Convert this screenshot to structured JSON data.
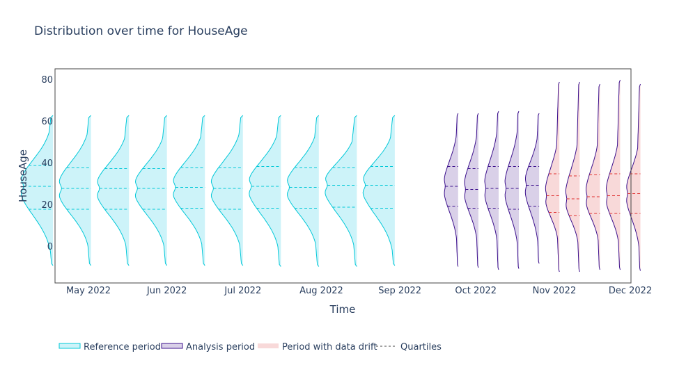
{
  "chart_data": {
    "type": "violin",
    "title": "Distribution over time for HouseAge",
    "xlabel": "Time",
    "ylabel": "HouseAge",
    "ylim": [
      -18,
      85
    ],
    "yticks": [
      0,
      20,
      40,
      60,
      80
    ],
    "xticks": [
      "May 2022",
      "Jun 2022",
      "Jul 2022",
      "Aug 2022",
      "Sep 2022",
      "Oct 2022",
      "Nov 2022",
      "Dec 2022"
    ],
    "grid": false,
    "legend_position": "bottom-left",
    "legend": [
      {
        "label": "Reference period",
        "kind": "reference"
      },
      {
        "label": "Analysis period",
        "kind": "analysis"
      },
      {
        "label": "Period with data drift",
        "kind": "drift"
      },
      {
        "label": "Quartiles",
        "kind": "quartile"
      }
    ],
    "colors": {
      "reference_line": "#00c8d8",
      "reference_fill": "#cdf3f9",
      "analysis_line": "#3b0f8c",
      "analysis_fill": "#d9d0e8",
      "drift_fill": "#f8d9d9",
      "drift_quartile": "#e03030",
      "axis": "#444444"
    },
    "violins": [
      {
        "date": "2022-04-17",
        "period": "reference",
        "drift": false,
        "min": -9,
        "max": 63,
        "q1": 18,
        "median": 29,
        "q3": 39
      },
      {
        "date": "2022-05-02",
        "period": "reference",
        "drift": false,
        "min": -9,
        "max": 63,
        "q1": 18,
        "median": 28,
        "q3": 38
      },
      {
        "date": "2022-05-17",
        "period": "reference",
        "drift": false,
        "min": -9,
        "max": 63,
        "q1": 18,
        "median": 28,
        "q3": 37.5
      },
      {
        "date": "2022-06-01",
        "period": "reference",
        "drift": false,
        "min": -9,
        "max": 63,
        "q1": 18,
        "median": 28,
        "q3": 37.5
      },
      {
        "date": "2022-06-16",
        "period": "reference",
        "drift": false,
        "min": -9,
        "max": 63,
        "q1": 18.5,
        "median": 28.5,
        "q3": 38
      },
      {
        "date": "2022-07-01",
        "period": "reference",
        "drift": false,
        "min": -9,
        "max": 63,
        "q1": 18,
        "median": 28,
        "q3": 38
      },
      {
        "date": "2022-07-16",
        "period": "reference",
        "drift": false,
        "min": -9.5,
        "max": 63,
        "q1": 18.5,
        "median": 29,
        "q3": 38.5
      },
      {
        "date": "2022-07-31",
        "period": "reference",
        "drift": false,
        "min": -9.5,
        "max": 63,
        "q1": 18.5,
        "median": 28.5,
        "q3": 38
      },
      {
        "date": "2022-08-15",
        "period": "reference",
        "drift": false,
        "min": -9.5,
        "max": 63,
        "q1": 19,
        "median": 29.5,
        "q3": 38
      },
      {
        "date": "2022-08-30",
        "period": "reference",
        "drift": false,
        "min": -9,
        "max": 63,
        "q1": 18.5,
        "median": 29.5,
        "q3": 38.5
      },
      {
        "date": "2022-09-24",
        "period": "analysis",
        "drift": false,
        "min": -9.5,
        "max": 64,
        "q1": 19.5,
        "median": 29,
        "q3": 38.5
      },
      {
        "date": "2022-10-02",
        "period": "analysis",
        "drift": false,
        "min": -10,
        "max": 64,
        "q1": 18.5,
        "median": 27.5,
        "q3": 37.5
      },
      {
        "date": "2022-10-10",
        "period": "analysis",
        "drift": false,
        "min": -11,
        "max": 65,
        "q1": 18.5,
        "median": 28,
        "q3": 38.5
      },
      {
        "date": "2022-10-18",
        "period": "analysis",
        "drift": false,
        "min": -10.5,
        "max": 65,
        "q1": 18,
        "median": 28,
        "q3": 38.5
      },
      {
        "date": "2022-10-26",
        "period": "analysis",
        "drift": false,
        "min": -8,
        "max": 64,
        "q1": 19.5,
        "median": 29.5,
        "q3": 38.5
      },
      {
        "date": "2022-11-03",
        "period": "analysis",
        "drift": true,
        "min": -12,
        "max": 79,
        "q1": 16.5,
        "median": 24.5,
        "q3": 35
      },
      {
        "date": "2022-11-11",
        "period": "analysis",
        "drift": true,
        "min": -12,
        "max": 79,
        "q1": 15,
        "median": 23,
        "q3": 34
      },
      {
        "date": "2022-11-19",
        "period": "analysis",
        "drift": true,
        "min": -11,
        "max": 78,
        "q1": 16,
        "median": 24,
        "q3": 34.5
      },
      {
        "date": "2022-11-27",
        "period": "analysis",
        "drift": true,
        "min": -11,
        "max": 80,
        "q1": 16,
        "median": 24.5,
        "q3": 35
      },
      {
        "date": "2022-12-05",
        "period": "analysis",
        "drift": true,
        "min": -11.5,
        "max": 78,
        "q1": 16,
        "median": 25.5,
        "q3": 35
      }
    ]
  }
}
